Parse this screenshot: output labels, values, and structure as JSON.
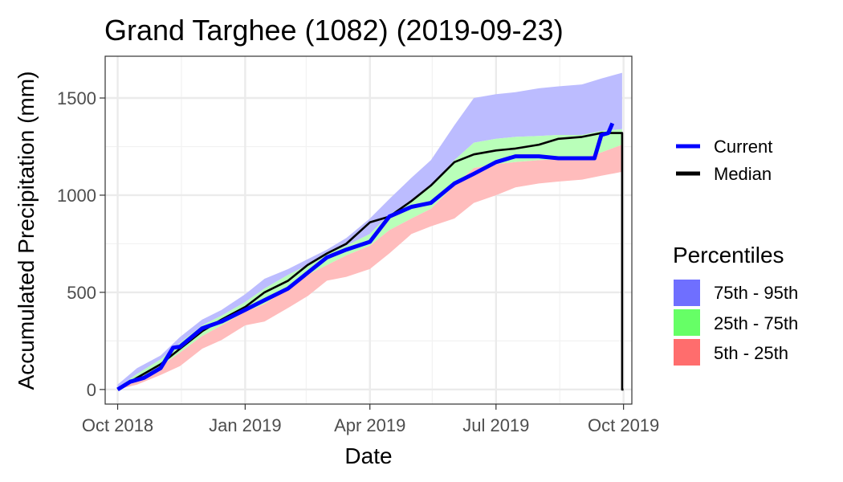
{
  "chart_data": {
    "type": "area",
    "title": "Grand Targhee (1082) (2019-09-23)",
    "xlabel": "Date",
    "ylabel": "Accumulated Precipitation (mm)",
    "x_ticks": [
      "Oct 2018",
      "Jan 2019",
      "Apr 2019",
      "Jul 2019",
      "Oct 2019"
    ],
    "y_ticks": [
      "0",
      "500",
      "1000",
      "1500"
    ],
    "ylim": [
      -75,
      1715
    ],
    "xlim": [
      "2018-09-22",
      "2019-10-07"
    ],
    "grid": true,
    "legend_position": "right",
    "lines_legend": [
      {
        "name": "Current",
        "color": "#0000ff"
      },
      {
        "name": "Median",
        "color": "#000000"
      }
    ],
    "bands_legend_title": "Percentiles",
    "bands": [
      {
        "name": "75th - 95th",
        "color": "#6f6fff",
        "fill": "#bcbcff"
      },
      {
        "name": "25th - 75th",
        "color": "#66ff66",
        "fill": "#b9ffb9"
      },
      {
        "name": "5th - 25th",
        "color": "#ff6d6d",
        "fill": "#ffbcbc"
      }
    ],
    "band_series": {
      "x": [
        "2018-10-01",
        "2018-10-15",
        "2018-11-01",
        "2018-11-15",
        "2018-12-01",
        "2018-12-15",
        "2019-01-01",
        "2019-01-15",
        "2019-02-01",
        "2019-02-15",
        "2019-03-01",
        "2019-03-15",
        "2019-04-01",
        "2019-04-15",
        "2019-05-01",
        "2019-05-15",
        "2019-06-01",
        "2019-06-15",
        "2019-07-01",
        "2019-07-15",
        "2019-08-01",
        "2019-08-15",
        "2019-09-01",
        "2019-09-15",
        "2019-09-30"
      ],
      "p5": [
        0,
        25,
        75,
        120,
        210,
        255,
        330,
        350,
        420,
        480,
        560,
        580,
        620,
        700,
        800,
        840,
        880,
        960,
        1000,
        1040,
        1060,
        1070,
        1080,
        1100,
        1120
      ],
      "p25": [
        0,
        45,
        120,
        190,
        275,
        330,
        400,
        440,
        520,
        590,
        640,
        690,
        740,
        820,
        880,
        930,
        1050,
        1140,
        1160,
        1170,
        1180,
        1185,
        1190,
        1220,
        1260
      ],
      "p75": [
        10,
        80,
        155,
        240,
        330,
        380,
        450,
        520,
        590,
        640,
        700,
        740,
        800,
        900,
        970,
        1050,
        1180,
        1270,
        1290,
        1300,
        1305,
        1310,
        1310,
        1330,
        1340
      ],
      "p95": [
        25,
        110,
        175,
        270,
        360,
        410,
        490,
        570,
        620,
        670,
        720,
        780,
        880,
        980,
        1090,
        1180,
        1360,
        1500,
        1520,
        1530,
        1550,
        1560,
        1570,
        1600,
        1630
      ]
    },
    "series": [
      {
        "name": "Current",
        "x": [
          "2018-10-01",
          "2018-10-10",
          "2018-10-20",
          "2018-11-01",
          "2018-11-10",
          "2018-11-15",
          "2018-12-01",
          "2018-12-15",
          "2019-01-01",
          "2019-01-15",
          "2019-02-01",
          "2019-02-15",
          "2019-03-01",
          "2019-03-15",
          "2019-04-01",
          "2019-04-15",
          "2019-05-01",
          "2019-05-15",
          "2019-06-01",
          "2019-06-15",
          "2019-07-01",
          "2019-07-15",
          "2019-08-01",
          "2019-08-15",
          "2019-09-01",
          "2019-09-10",
          "2019-09-15",
          "2019-09-20",
          "2019-09-23"
        ],
        "values": [
          0,
          40,
          60,
          110,
          215,
          220,
          315,
          350,
          410,
          460,
          520,
          600,
          680,
          720,
          760,
          890,
          940,
          960,
          1060,
          1110,
          1170,
          1200,
          1200,
          1190,
          1190,
          1190,
          1310,
          1320,
          1370
        ]
      },
      {
        "name": "Median",
        "x": [
          "2018-10-01",
          "2018-10-15",
          "2018-11-01",
          "2018-11-15",
          "2018-12-01",
          "2018-12-15",
          "2019-01-01",
          "2019-01-15",
          "2019-02-01",
          "2019-02-15",
          "2019-03-01",
          "2019-03-15",
          "2019-04-01",
          "2019-04-15",
          "2019-05-01",
          "2019-05-15",
          "2019-06-01",
          "2019-06-15",
          "2019-07-01",
          "2019-07-15",
          "2019-08-01",
          "2019-08-15",
          "2019-09-01",
          "2019-09-15",
          "2019-09-30",
          "2019-09-30",
          "2019-10-01"
        ],
        "values": [
          0,
          60,
          130,
          210,
          300,
          360,
          425,
          500,
          560,
          640,
          700,
          750,
          860,
          890,
          970,
          1050,
          1170,
          1210,
          1230,
          1240,
          1260,
          1290,
          1300,
          1320,
          1320,
          0,
          0
        ]
      }
    ]
  }
}
